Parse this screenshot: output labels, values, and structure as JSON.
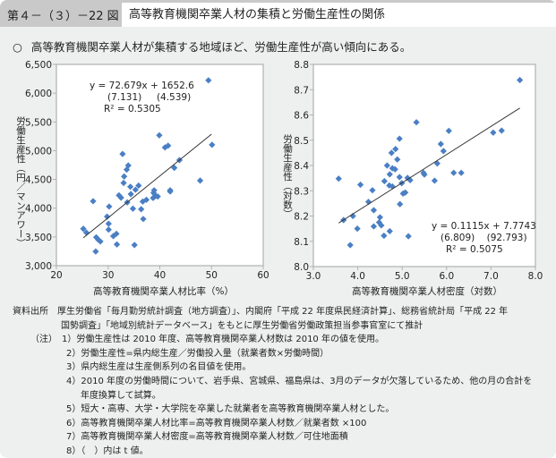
{
  "header": {
    "figure_number": "第４－（３）－22 図",
    "title": "高等教育機関卒業人材の集積と労働生産性の関係"
  },
  "summary": {
    "marker": "○",
    "text": "高等教育機関卒業人材が集積する地域ほど、労働生産性が高い傾向にある。"
  },
  "colors": {
    "point": "#4a7fc4",
    "trend": "#333333",
    "plot_bg": "#ffffff",
    "axis": "#b0b0b0"
  },
  "chart_data": [
    {
      "type": "scatter",
      "title": "",
      "xlabel": "高等教育機関卒業人材比率（%）",
      "ylabel": "労働生産性（円／マンアワー）",
      "xlim": [
        20,
        60
      ],
      "ylim": [
        3000,
        6500
      ],
      "xticks": [
        20,
        30,
        40,
        50,
        60
      ],
      "xtick_labels": [
        "20",
        "30",
        "40",
        "50",
        "60"
      ],
      "yticks": [
        3000,
        3500,
        4000,
        4500,
        5000,
        5500,
        6000,
        6500
      ],
      "ytick_labels": [
        "3,000",
        "3,500",
        "4,000",
        "4,500",
        "5,000",
        "5,500",
        "6,000",
        "6,500"
      ],
      "equation": {
        "line1": "y = 72.679x + 1652.6",
        "line2": "(7.131)     (4.539)",
        "line3": "R² = 0.5305"
      },
      "trend": {
        "slope": 72.679,
        "intercept": 1652.6,
        "x_range": [
          25.2,
          50.0
        ]
      },
      "points": [
        [
          49.4,
          6223
        ],
        [
          39.9,
          5267
        ],
        [
          41.0,
          5056
        ],
        [
          41.6,
          5087
        ],
        [
          50.1,
          5102
        ],
        [
          32.8,
          4943
        ],
        [
          43.8,
          4835
        ],
        [
          42.8,
          4701
        ],
        [
          33.9,
          4742
        ],
        [
          33.6,
          4670
        ],
        [
          33.1,
          4552
        ],
        [
          33.0,
          4439
        ],
        [
          47.8,
          4480
        ],
        [
          34.3,
          4372
        ],
        [
          35.9,
          4393
        ],
        [
          35.3,
          4321
        ],
        [
          34.4,
          4244
        ],
        [
          32.1,
          4223
        ],
        [
          32.5,
          4182
        ],
        [
          38.9,
          4311
        ],
        [
          38.8,
          4265
        ],
        [
          42.0,
          4311
        ],
        [
          42.0,
          4290
        ],
        [
          39.2,
          4213
        ],
        [
          39.6,
          4203
        ],
        [
          38.7,
          4177
        ],
        [
          37.4,
          4146
        ],
        [
          36.7,
          4115
        ],
        [
          27.1,
          4121
        ],
        [
          33.7,
          4100
        ],
        [
          30.2,
          4028
        ],
        [
          34.8,
          3992
        ],
        [
          36.4,
          3982
        ],
        [
          29.8,
          3853
        ],
        [
          36.8,
          3812
        ],
        [
          30.1,
          3730
        ],
        [
          30.1,
          3627
        ],
        [
          25.2,
          3642
        ],
        [
          25.8,
          3576
        ],
        [
          27.7,
          3493
        ],
        [
          28.1,
          3452
        ],
        [
          28.5,
          3421
        ],
        [
          31.0,
          3514
        ],
        [
          31.6,
          3555
        ],
        [
          31.7,
          3370
        ],
        [
          35.1,
          3360
        ],
        [
          27.6,
          3247
        ]
      ]
    },
    {
      "type": "scatter",
      "title": "",
      "xlabel": "高等教育機関卒業人材密度（対数）",
      "ylabel": "労働生産性（対数）",
      "xlim": [
        3.0,
        8.0
      ],
      "ylim": [
        8.0,
        8.8
      ],
      "xticks": [
        3,
        4,
        5,
        6,
        7,
        8
      ],
      "xtick_labels": [
        "3.0",
        "4.0",
        "5.0",
        "6.0",
        "7.0",
        "8.0"
      ],
      "yticks": [
        8.0,
        8.1,
        8.2,
        8.3,
        8.4,
        8.5,
        8.6,
        8.7,
        8.8
      ],
      "ytick_labels": [
        "8.0",
        "8.1",
        "8.2",
        "8.3",
        "8.4",
        "8.5",
        "8.6",
        "8.7",
        "8.8"
      ],
      "equation": {
        "line1": "y = 0.1115x + 7.7743",
        "line2": "   (6.809)    (92.793)",
        "line3": "R² = 0.5075"
      },
      "trend": {
        "slope": 0.1115,
        "intercept": 7.7743,
        "x_range": [
          3.57,
          7.65
        ]
      },
      "points": [
        [
          7.65,
          8.738
        ],
        [
          5.32,
          8.571
        ],
        [
          6.05,
          8.537
        ],
        [
          7.05,
          8.53
        ],
        [
          7.24,
          8.538
        ],
        [
          4.94,
          8.506
        ],
        [
          5.87,
          8.485
        ],
        [
          5.93,
          8.457
        ],
        [
          4.85,
          8.465
        ],
        [
          4.76,
          8.45
        ],
        [
          4.89,
          8.424
        ],
        [
          4.66,
          8.4
        ],
        [
          5.79,
          8.408
        ],
        [
          4.78,
          8.389
        ],
        [
          4.84,
          8.385
        ],
        [
          4.72,
          8.365
        ],
        [
          4.94,
          8.354
        ],
        [
          5.12,
          8.351
        ],
        [
          5.18,
          8.342
        ],
        [
          5.48,
          8.371
        ],
        [
          5.5,
          8.364
        ],
        [
          6.16,
          8.371
        ],
        [
          6.33,
          8.371
        ],
        [
          5.73,
          8.34
        ],
        [
          3.57,
          8.348
        ],
        [
          4.6,
          8.338
        ],
        [
          4.06,
          8.324
        ],
        [
          4.71,
          8.321
        ],
        [
          4.78,
          8.317
        ],
        [
          4.99,
          8.33
        ],
        [
          5.02,
          8.289
        ],
        [
          5.07,
          8.293
        ],
        [
          4.33,
          8.302
        ],
        [
          4.24,
          8.256
        ],
        [
          4.95,
          8.247
        ],
        [
          4.36,
          8.223
        ],
        [
          3.68,
          8.184
        ],
        [
          3.89,
          8.2
        ],
        [
          4.5,
          8.195
        ],
        [
          4.48,
          8.175
        ],
        [
          4.53,
          8.163
        ],
        [
          4.36,
          8.159
        ],
        [
          3.99,
          8.15
        ],
        [
          4.72,
          8.14
        ],
        [
          4.59,
          8.122
        ],
        [
          5.14,
          8.12
        ],
        [
          3.83,
          8.085
        ]
      ]
    }
  ],
  "notes": {
    "source_label": "資料出所",
    "source_line1": "厚生労働省「毎月勤労統計調査（地方調査）」、内閣府「平成 22 年度県民経済計算」、総務省統計局「平成 22 年",
    "source_line2": "国勢調査」「地域別統計データベース」をもとに厚生労働省労働政策担当参事官室にて推計",
    "notes_label": "（注）",
    "items": [
      "1）労働生産性は 2010 年度、高等教育機関卒業人材数は 2010 年の値を使用。",
      "2）労働生産性=県内総生産／労働投入量（就業者数×労働時間）",
      "3）県内総生産は生産側系列の名目値を使用。",
      "4）2010 年度の労働時間について、岩手県、宮城県、福島県は、3月のデータが欠落しているため、他の月の合計を",
      "5）短大・高専、大学・大学院を卒業した就業者を高等教育機関卒業人材とした。",
      "6）高等教育機関卒業人材比率=高等教育機関卒業人材数／就業者数 ×100",
      "7）高等教育機関卒業人材密度=高等教育機関卒業人材数／可住地面積",
      "8）（　）内は t 値。"
    ],
    "item4_cont": "年度換算して試算。"
  }
}
